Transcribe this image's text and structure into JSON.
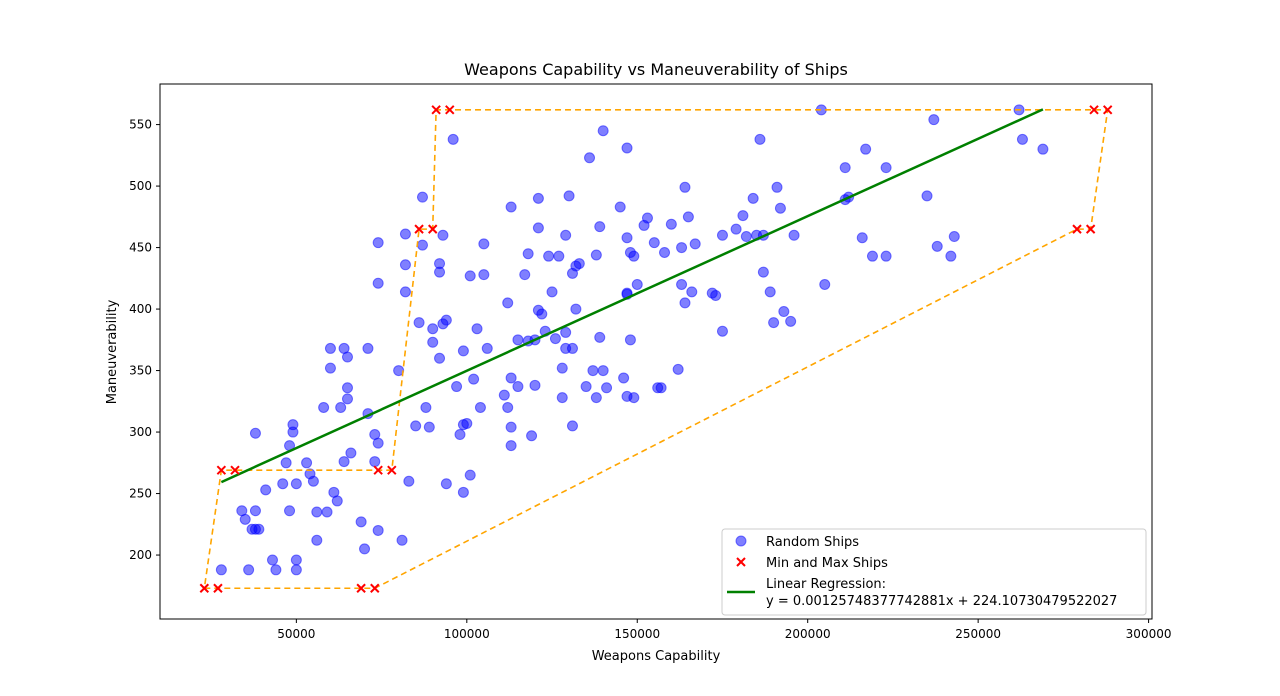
{
  "chart_data": {
    "type": "scatter",
    "title": "Weapons Capability vs Maneuverability of Ships",
    "xlabel": "Weapons Capability",
    "ylabel": "Maneuverability",
    "xlim": [
      10000,
      301000
    ],
    "ylim": [
      148,
      583
    ],
    "x_ticks": [
      50000,
      100000,
      150000,
      200000,
      250000,
      300000
    ],
    "y_ticks": [
      200,
      250,
      300,
      350,
      400,
      450,
      500,
      550
    ],
    "grid": false,
    "legend_position": "bottom-right",
    "colors": {
      "random_ships": "#0000ff",
      "min_max_ships": "#ff0000",
      "regression": "#008000",
      "hull": "#ffa500"
    },
    "series": [
      {
        "name": "Random Ships",
        "marker": "circle",
        "points": [
          [
            28000,
            188
          ],
          [
            38000,
            236
          ],
          [
            43000,
            196
          ],
          [
            44000,
            188
          ],
          [
            46000,
            258
          ],
          [
            47000,
            275
          ],
          [
            48000,
            236
          ],
          [
            48000,
            289
          ],
          [
            49000,
            306
          ],
          [
            49000,
            300
          ],
          [
            50000,
            196
          ],
          [
            50000,
            188
          ],
          [
            50000,
            258
          ],
          [
            53000,
            275
          ],
          [
            54000,
            266
          ],
          [
            55000,
            260
          ],
          [
            56000,
            235
          ],
          [
            56000,
            212
          ],
          [
            58000,
            320
          ],
          [
            59000,
            235
          ],
          [
            60000,
            352
          ],
          [
            60000,
            368
          ],
          [
            61000,
            251
          ],
          [
            62000,
            244
          ],
          [
            63000,
            320
          ],
          [
            64000,
            368
          ],
          [
            64000,
            276
          ],
          [
            65000,
            327
          ],
          [
            65000,
            336
          ],
          [
            65000,
            361
          ],
          [
            66000,
            283
          ],
          [
            38000,
            299
          ],
          [
            34000,
            236
          ],
          [
            35000,
            229
          ],
          [
            37000,
            221
          ],
          [
            38000,
            221
          ],
          [
            39000,
            221
          ],
          [
            41000,
            253
          ],
          [
            36000,
            188
          ],
          [
            70000,
            205
          ],
          [
            69000,
            227
          ],
          [
            71000,
            315
          ],
          [
            71000,
            368
          ],
          [
            73000,
            276
          ],
          [
            73000,
            298
          ],
          [
            74000,
            220
          ],
          [
            74000,
            291
          ],
          [
            74000,
            421
          ],
          [
            74000,
            454
          ],
          [
            80000,
            350
          ],
          [
            81000,
            212
          ],
          [
            82000,
            461
          ],
          [
            82000,
            414
          ],
          [
            82000,
            436
          ],
          [
            83000,
            260
          ],
          [
            85000,
            305
          ],
          [
            86000,
            389
          ],
          [
            87000,
            452
          ],
          [
            87000,
            491
          ],
          [
            88000,
            320
          ],
          [
            89000,
            304
          ],
          [
            90000,
            373
          ],
          [
            90000,
            384
          ],
          [
            92000,
            430
          ],
          [
            92000,
            360
          ],
          [
            92000,
            437
          ],
          [
            93000,
            460
          ],
          [
            93000,
            388
          ],
          [
            94000,
            258
          ],
          [
            94000,
            391
          ],
          [
            96000,
            538
          ],
          [
            97000,
            337
          ],
          [
            98000,
            298
          ],
          [
            99000,
            306
          ],
          [
            99000,
            366
          ],
          [
            99000,
            251
          ],
          [
            100000,
            307
          ],
          [
            101000,
            427
          ],
          [
            101000,
            265
          ],
          [
            102000,
            343
          ],
          [
            103000,
            384
          ],
          [
            104000,
            320
          ],
          [
            105000,
            453
          ],
          [
            105000,
            428
          ],
          [
            106000,
            368
          ],
          [
            111000,
            330
          ],
          [
            112000,
            320
          ],
          [
            112000,
            405
          ],
          [
            113000,
            289
          ],
          [
            113000,
            304
          ],
          [
            113000,
            344
          ],
          [
            113000,
            483
          ],
          [
            115000,
            375
          ],
          [
            115000,
            337
          ],
          [
            117000,
            428
          ],
          [
            118000,
            445
          ],
          [
            118000,
            374
          ],
          [
            119000,
            297
          ],
          [
            120000,
            375
          ],
          [
            120000,
            338
          ],
          [
            121000,
            399
          ],
          [
            121000,
            466
          ],
          [
            121000,
            490
          ],
          [
            122000,
            396
          ],
          [
            123000,
            382
          ],
          [
            124000,
            443
          ],
          [
            125000,
            414
          ],
          [
            126000,
            376
          ],
          [
            127000,
            443
          ],
          [
            128000,
            352
          ],
          [
            128000,
            328
          ],
          [
            129000,
            381
          ],
          [
            129000,
            460
          ],
          [
            129000,
            368
          ],
          [
            130000,
            492
          ],
          [
            131000,
            305
          ],
          [
            131000,
            368
          ],
          [
            131000,
            429
          ],
          [
            132000,
            400
          ],
          [
            132000,
            435
          ],
          [
            133000,
            437
          ],
          [
            135000,
            337
          ],
          [
            136000,
            523
          ],
          [
            137000,
            350
          ],
          [
            138000,
            444
          ],
          [
            138000,
            328
          ],
          [
            139000,
            377
          ],
          [
            139000,
            467
          ],
          [
            140000,
            545
          ],
          [
            140000,
            350
          ],
          [
            141000,
            336
          ],
          [
            145000,
            483
          ],
          [
            146000,
            344
          ],
          [
            147000,
            531
          ],
          [
            147000,
            458
          ],
          [
            147000,
            413
          ],
          [
            147000,
            412
          ],
          [
            147000,
            329
          ],
          [
            148000,
            446
          ],
          [
            148000,
            375
          ],
          [
            149000,
            443
          ],
          [
            149000,
            328
          ],
          [
            150000,
            420
          ],
          [
            152000,
            468
          ],
          [
            153000,
            474
          ],
          [
            155000,
            454
          ],
          [
            156000,
            336
          ],
          [
            157000,
            336
          ],
          [
            158000,
            446
          ],
          [
            160000,
            469
          ],
          [
            162000,
            351
          ],
          [
            163000,
            420
          ],
          [
            163000,
            450
          ],
          [
            164000,
            499
          ],
          [
            164000,
            405
          ],
          [
            165000,
            475
          ],
          [
            166000,
            414
          ],
          [
            167000,
            453
          ],
          [
            172000,
            413
          ],
          [
            173000,
            411
          ],
          [
            175000,
            382
          ],
          [
            175000,
            460
          ],
          [
            179000,
            465
          ],
          [
            181000,
            476
          ],
          [
            182000,
            459
          ],
          [
            184000,
            490
          ],
          [
            185000,
            460
          ],
          [
            186000,
            538
          ],
          [
            187000,
            460
          ],
          [
            187000,
            430
          ],
          [
            189000,
            414
          ],
          [
            190000,
            389
          ],
          [
            191000,
            499
          ],
          [
            192000,
            482
          ],
          [
            193000,
            398
          ],
          [
            195000,
            390
          ],
          [
            196000,
            460
          ],
          [
            204000,
            562
          ],
          [
            205000,
            420
          ],
          [
            211000,
            515
          ],
          [
            211000,
            489
          ],
          [
            212000,
            491
          ],
          [
            216000,
            458
          ],
          [
            217000,
            530
          ],
          [
            219000,
            443
          ],
          [
            223000,
            515
          ],
          [
            223000,
            443
          ],
          [
            235000,
            492
          ],
          [
            237000,
            554
          ],
          [
            238000,
            451
          ],
          [
            242000,
            443
          ],
          [
            243000,
            459
          ],
          [
            262000,
            562
          ],
          [
            263000,
            538
          ],
          [
            269000,
            530
          ]
        ]
      },
      {
        "name": "Min and Max Ships",
        "marker": "x",
        "points": [
          [
            23000,
            173
          ],
          [
            27000,
            173
          ],
          [
            69000,
            173
          ],
          [
            73000,
            173
          ],
          [
            28000,
            269
          ],
          [
            32000,
            269
          ],
          [
            74000,
            269
          ],
          [
            78000,
            269
          ],
          [
            86000,
            465
          ],
          [
            90000,
            465
          ],
          [
            279000,
            465
          ],
          [
            283000,
            465
          ],
          [
            91000,
            562
          ],
          [
            95000,
            562
          ],
          [
            284000,
            562
          ],
          [
            288000,
            562
          ]
        ]
      },
      {
        "name": "Linear Regression:\ny = 0.00125748377742881x + 224.10730479522027",
        "type": "line",
        "slope": 0.00125748377742881,
        "intercept": 224.10730479522027,
        "x_range": [
          28000,
          269000
        ]
      }
    ],
    "hull_polygon": [
      [
        23000,
        173
      ],
      [
        73000,
        173
      ],
      [
        279000,
        465
      ],
      [
        283000,
        465
      ],
      [
        288000,
        562
      ],
      [
        91000,
        562
      ],
      [
        90000,
        465
      ],
      [
        86000,
        465
      ],
      [
        78000,
        269
      ],
      [
        28000,
        269
      ],
      [
        23000,
        173
      ]
    ],
    "legend": [
      "Random Ships",
      "Min and Max Ships",
      "Linear Regression:",
      "y = 0.00125748377742881x + 224.10730479522027"
    ]
  }
}
